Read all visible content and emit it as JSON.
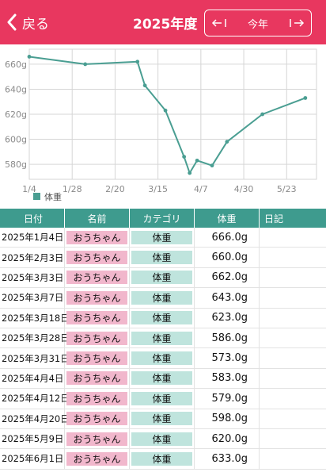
{
  "header": {
    "back_label": "戻る",
    "year_title": "2025年度",
    "nav_current": "今年",
    "accent_color": "#e8375f"
  },
  "chart_data": {
    "type": "line",
    "x_tick_labels": [
      "1/4",
      "1/28",
      "2/20",
      "3/15",
      "4/7",
      "4/30",
      "5/23"
    ],
    "y_tick_labels": [
      "660g",
      "640g",
      "620g",
      "600g",
      "580g"
    ],
    "ylim": [
      568,
      672
    ],
    "legend": "体重",
    "legend_position": "bottom-left",
    "series_color": "#4a9e92",
    "points": [
      {
        "x": "2025-01-04",
        "y": 666.0
      },
      {
        "x": "2025-02-03",
        "y": 660.0
      },
      {
        "x": "2025-03-03",
        "y": 662.0
      },
      {
        "x": "2025-03-07",
        "y": 643.0
      },
      {
        "x": "2025-03-18",
        "y": 623.0
      },
      {
        "x": "2025-03-28",
        "y": 586.0
      },
      {
        "x": "2025-03-31",
        "y": 573.0
      },
      {
        "x": "2025-04-04",
        "y": 583.0
      },
      {
        "x": "2025-04-12",
        "y": 579.0
      },
      {
        "x": "2025-04-20",
        "y": 598.0
      },
      {
        "x": "2025-05-09",
        "y": 620.0
      },
      {
        "x": "2025-06-01",
        "y": 633.0
      }
    ]
  },
  "table": {
    "headers": {
      "date": "日付",
      "name": "名前",
      "category": "カテゴリ",
      "weight": "体重",
      "diary": "日記"
    },
    "rows": [
      {
        "date": "2025年1月4日",
        "name": "おうちゃん",
        "category": "体重",
        "weight": "666.0g",
        "diary": ""
      },
      {
        "date": "2025年2月3日",
        "name": "おうちゃん",
        "category": "体重",
        "weight": "660.0g",
        "diary": ""
      },
      {
        "date": "2025年3月3日",
        "name": "おうちゃん",
        "category": "体重",
        "weight": "662.0g",
        "diary": ""
      },
      {
        "date": "2025年3月7日",
        "name": "おうちゃん",
        "category": "体重",
        "weight": "643.0g",
        "diary": ""
      },
      {
        "date": "2025年3月18日",
        "name": "おうちゃん",
        "category": "体重",
        "weight": "623.0g",
        "diary": ""
      },
      {
        "date": "2025年3月28日",
        "name": "おうちゃん",
        "category": "体重",
        "weight": "586.0g",
        "diary": ""
      },
      {
        "date": "2025年3月31日",
        "name": "おうちゃん",
        "category": "体重",
        "weight": "573.0g",
        "diary": ""
      },
      {
        "date": "2025年4月4日",
        "name": "おうちゃん",
        "category": "体重",
        "weight": "583.0g",
        "diary": ""
      },
      {
        "date": "2025年4月12日",
        "name": "おうちゃん",
        "category": "体重",
        "weight": "579.0g",
        "diary": ""
      },
      {
        "date": "2025年4月20日",
        "name": "おうちゃん",
        "category": "体重",
        "weight": "598.0g",
        "diary": ""
      },
      {
        "date": "2025年5月9日",
        "name": "おうちゃん",
        "category": "体重",
        "weight": "620.0g",
        "diary": ""
      },
      {
        "date": "2025年6月1日",
        "name": "おうちゃん",
        "category": "体重",
        "weight": "633.0g",
        "diary": ""
      }
    ]
  }
}
